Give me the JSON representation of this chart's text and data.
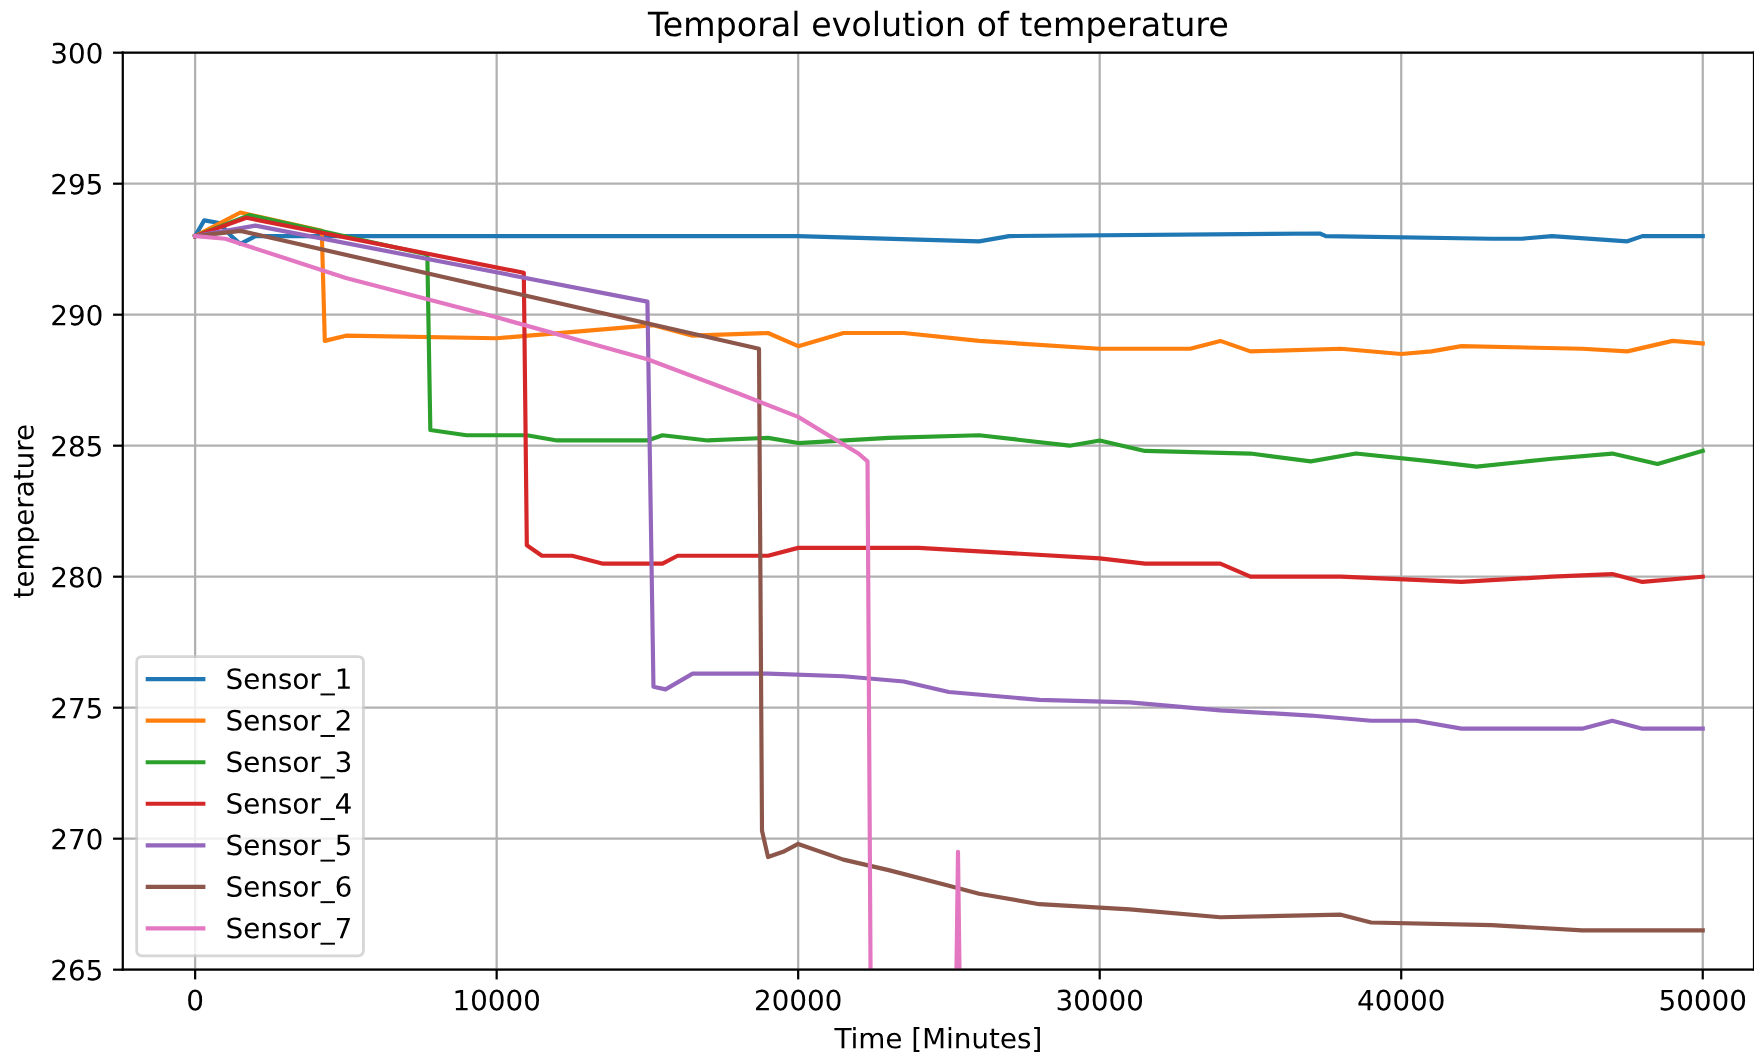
{
  "chart_data": {
    "type": "line",
    "title": "Temporal evolution of temperature",
    "xlabel": "Time [Minutes]",
    "ylabel": "temperature",
    "xlim": [
      -2400,
      51700
    ],
    "xticks": [
      0,
      10000,
      20000,
      30000,
      40000,
      50000
    ],
    "ylim": [
      265,
      300
    ],
    "yticks": [
      265,
      270,
      275,
      280,
      285,
      290,
      295,
      300
    ],
    "grid": true,
    "legend": "bottom left",
    "line_style": "solid",
    "series": [
      {
        "name": "Sensor_1",
        "color": "#1f77b4",
        "x": [
          0,
          300,
          800,
          1200,
          1500,
          2000,
          10000,
          20000,
          26000,
          27000,
          37300,
          37500,
          43000,
          44000,
          45000,
          47500,
          48000,
          50000
        ],
        "values": [
          293.0,
          293.6,
          293.5,
          293.0,
          292.7,
          293.0,
          293.0,
          293.0,
          292.8,
          293.0,
          293.1,
          293.0,
          292.9,
          292.9,
          293.0,
          292.8,
          293.0,
          293.0
        ]
      },
      {
        "name": "Sensor_2",
        "color": "#ff7f0e",
        "x": [
          0,
          1500,
          4200,
          4300,
          5000,
          10000,
          15200,
          16500,
          19000,
          20000,
          21500,
          23500,
          26000,
          30000,
          33000,
          34000,
          35000,
          38000,
          40000,
          41000,
          42000,
          46000,
          47500,
          49000,
          50000
        ],
        "values": [
          293.0,
          293.9,
          293.2,
          289.0,
          289.2,
          289.1,
          289.6,
          289.2,
          289.3,
          288.8,
          289.3,
          289.3,
          289.0,
          288.7,
          288.7,
          289.0,
          288.6,
          288.7,
          288.5,
          288.6,
          288.8,
          288.7,
          288.6,
          289.0,
          288.9
        ]
      },
      {
        "name": "Sensor_3",
        "color": "#2ca02c",
        "x": [
          0,
          1800,
          7700,
          7800,
          9000,
          11000,
          12000,
          15000,
          15500,
          17000,
          19000,
          20000,
          23000,
          26000,
          29000,
          30000,
          31500,
          35000,
          37000,
          38500,
          41000,
          42500,
          45000,
          47000,
          48500,
          50000
        ],
        "values": [
          293.0,
          293.8,
          292.3,
          285.6,
          285.4,
          285.4,
          285.2,
          285.2,
          285.4,
          285.2,
          285.3,
          285.1,
          285.3,
          285.4,
          285.0,
          285.2,
          284.8,
          284.7,
          284.4,
          284.7,
          284.4,
          284.2,
          284.5,
          284.7,
          284.3,
          284.8
        ]
      },
      {
        "name": "Sensor_4",
        "color": "#d62728",
        "x": [
          0,
          1700,
          10900,
          11000,
          11500,
          12500,
          13500,
          15500,
          16000,
          19000,
          20000,
          24000,
          27000,
          30000,
          31500,
          34000,
          35000,
          38000,
          42000,
          45000,
          47000,
          48000,
          50000
        ],
        "values": [
          293.0,
          293.7,
          291.6,
          281.2,
          280.8,
          280.8,
          280.5,
          280.5,
          280.8,
          280.8,
          281.1,
          281.1,
          280.9,
          280.7,
          280.5,
          280.5,
          280.0,
          280.0,
          279.8,
          280.0,
          280.1,
          279.8,
          280.0
        ]
      },
      {
        "name": "Sensor_5",
        "color": "#9467bd",
        "x": [
          0,
          2000,
          15000,
          15200,
          15600,
          16500,
          19000,
          21500,
          23500,
          25000,
          28000,
          31000,
          34000,
          37000,
          39000,
          40500,
          42000,
          46000,
          47000,
          48000,
          50000
        ],
        "values": [
          293.0,
          293.4,
          290.5,
          275.8,
          275.7,
          276.3,
          276.3,
          276.2,
          276.0,
          275.6,
          275.3,
          275.2,
          274.9,
          274.7,
          274.5,
          274.5,
          274.2,
          274.2,
          274.5,
          274.2,
          274.2
        ]
      },
      {
        "name": "Sensor_6",
        "color": "#8c564b",
        "x": [
          0,
          1500,
          18700,
          18800,
          19000,
          19500,
          20000,
          21500,
          23000,
          25000,
          26000,
          28000,
          31000,
          34000,
          38000,
          39000,
          43000,
          46000,
          50000
        ],
        "values": [
          293.0,
          293.2,
          288.7,
          270.3,
          269.3,
          269.5,
          269.8,
          269.2,
          268.8,
          268.2,
          267.9,
          267.5,
          267.3,
          267.0,
          267.1,
          266.8,
          266.7,
          266.5,
          266.5
        ]
      },
      {
        "name": "Sensor_7",
        "color": "#e377c2",
        "x": [
          0,
          1000,
          5000,
          10000,
          15000,
          18000,
          20000,
          22000,
          22300,
          22400,
          23800,
          25250,
          25300,
          25350
        ],
        "values": [
          293.0,
          292.9,
          291.4,
          289.9,
          288.3,
          287.0,
          286.1,
          284.7,
          284.4,
          265,
          null,
          265,
          269.5,
          265
        ]
      }
    ]
  }
}
